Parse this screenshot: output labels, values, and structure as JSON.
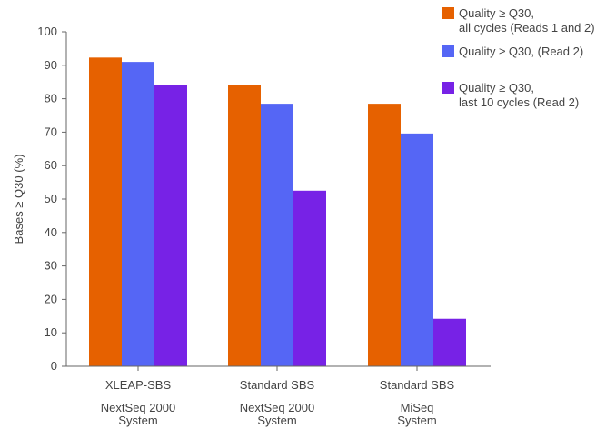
{
  "chart_data": {
    "type": "bar",
    "ylabel": "Bases ≥ Q30 (%)",
    "xlabel": "",
    "ylim": [
      0,
      100
    ],
    "yticks": [
      0,
      10,
      20,
      30,
      40,
      50,
      60,
      70,
      80,
      90,
      100
    ],
    "categories": [
      {
        "line1": "XLEAP-SBS",
        "line2": "NextSeq 2000",
        "line3": "System"
      },
      {
        "line1": "Standard SBS",
        "line2": "NextSeq 2000",
        "line3": "System"
      },
      {
        "line1": "Standard SBS",
        "line2": "MiSeq",
        "line3": "System"
      }
    ],
    "series": [
      {
        "name_lines": [
          "Quality ≥ Q30,",
          "all cycles (Reads 1 and 2)"
        ],
        "color": "#E66100",
        "values": [
          92.3,
          84.2,
          78.5
        ]
      },
      {
        "name_lines": [
          "Quality ≥ Q30, (Read 2)"
        ],
        "color": "#5566F5",
        "values": [
          91.0,
          78.5,
          69.6
        ]
      },
      {
        "name_lines": [
          "Quality ≥ Q30,",
          "last 10 cycles (Read 2)"
        ],
        "color": "#7722E6",
        "values": [
          84.2,
          52.5,
          14.2
        ]
      }
    ],
    "legend_position": "top-right",
    "grid": false
  }
}
